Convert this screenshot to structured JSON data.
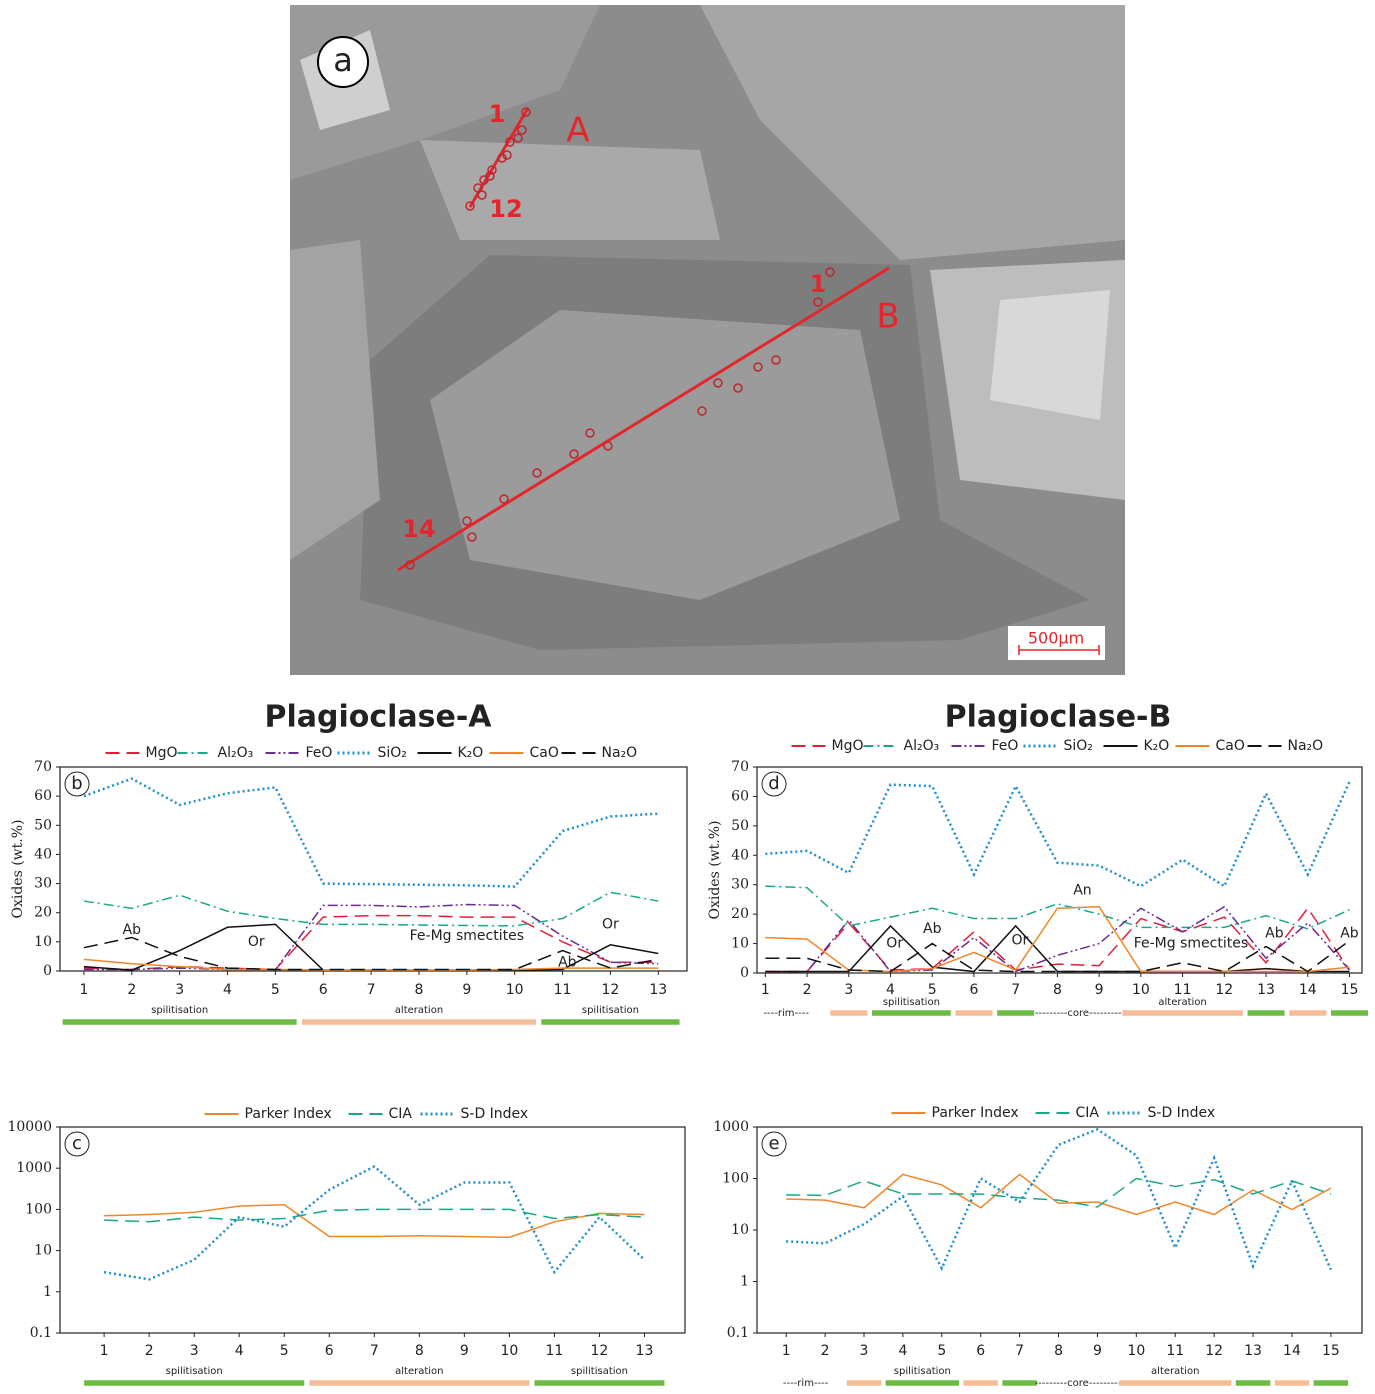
{
  "micrograph": {
    "labels": [
      "a",
      "1",
      "A",
      "12",
      "1",
      "B",
      "14",
      "500μm"
    ]
  },
  "chart_data": [
    {
      "type": "line",
      "title": "Plagioclase-A",
      "panel_label": "b",
      "y_label": "Oxides (wt.%)",
      "x": [
        1,
        2,
        3,
        4,
        5,
        6,
        7,
        8,
        9,
        10,
        11,
        12,
        13
      ],
      "xlim": [
        0.5,
        13.6
      ],
      "xticks": [
        1,
        2,
        3,
        4,
        5,
        6,
        7,
        8,
        9,
        10,
        11,
        12,
        13
      ],
      "ylim": [
        0,
        70
      ],
      "yticks": [
        0,
        10,
        20,
        30,
        40,
        50,
        60,
        70
      ],
      "log_y": false,
      "series": [
        {
          "name": "MgO",
          "color": "#e31e3a",
          "dash": "dashed",
          "values": [
            1,
            0.5,
            1.5,
            1,
            0.5,
            18.5,
            19,
            19,
            18.5,
            18.5,
            10,
            3,
            3
          ]
        },
        {
          "name": "Al₂O₃",
          "color": "#1aa88a",
          "dash": "dashdot",
          "values": [
            24,
            21.5,
            26,
            20.5,
            18,
            16,
            16,
            15.8,
            15.6,
            15.5,
            18,
            27,
            24
          ]
        },
        {
          "name": "FeO",
          "color": "#6a2c91",
          "dash": "dashdotdot",
          "values": [
            0.5,
            0.5,
            1,
            0.5,
            0.5,
            22.5,
            22.5,
            22,
            22.8,
            22.5,
            12,
            3,
            2.5
          ]
        },
        {
          "name": "SiO₂",
          "color": "#1f8fce",
          "dash": "dotted",
          "values": [
            60,
            66,
            57,
            61,
            63,
            30,
            29.8,
            29.6,
            29.4,
            29,
            48,
            53,
            54
          ]
        },
        {
          "name": "K₂O",
          "color": "#111111",
          "dash": "solid",
          "values": [
            1.5,
            0.3,
            7,
            15,
            16,
            0.3,
            0.3,
            0.3,
            0.3,
            0.3,
            0.5,
            9,
            6
          ]
        },
        {
          "name": "CaO",
          "color": "#f0862a",
          "dash": "solid",
          "values": [
            4,
            2.5,
            1.5,
            0.5,
            0.5,
            0.3,
            0.3,
            0.3,
            0.3,
            0.5,
            1,
            1,
            1
          ]
        },
        {
          "name": "Na₂O",
          "color": "#111111",
          "dash": "dashed",
          "values": [
            8,
            11.5,
            5,
            1,
            0.5,
            0.5,
            0.5,
            0.5,
            0.5,
            0.5,
            7,
            1,
            4
          ]
        }
      ],
      "annotations": [
        "Ab",
        "Or",
        "Fe-Mg smectites",
        "Or",
        "Ab"
      ],
      "segments": [
        {
          "label": "spilitisation",
          "from": 1,
          "to": 5,
          "color": "#6dbb45"
        },
        {
          "label": "alteration",
          "from": 6,
          "to": 10,
          "color": "#f6be98"
        },
        {
          "label": "spilitisation",
          "from": 11,
          "to": 13,
          "color": "#6dbb45"
        }
      ]
    },
    {
      "type": "line",
      "panel_label": "c",
      "x": [
        1,
        2,
        3,
        4,
        5,
        6,
        7,
        8,
        9,
        10,
        11,
        12,
        13
      ],
      "xlim": [
        0.02,
        13.9
      ],
      "xticks": [
        1,
        2,
        3,
        4,
        5,
        6,
        7,
        8,
        9,
        10,
        11,
        12,
        13
      ],
      "ylim": [
        0.1,
        10000
      ],
      "yticks": [
        0.1,
        1,
        10,
        100,
        1000,
        10000
      ],
      "log_y": true,
      "series": [
        {
          "name": "Parker Index",
          "color": "#f0862a",
          "dash": "solid",
          "values": [
            70,
            75,
            85,
            120,
            130,
            22,
            22,
            23,
            22,
            21,
            50,
            80,
            75
          ]
        },
        {
          "name": "CIA",
          "color": "#1aa88a",
          "dash": "dashed",
          "values": [
            55,
            50,
            65,
            55,
            60,
            95,
            100,
            100,
            100,
            100,
            60,
            75,
            65
          ]
        },
        {
          "name": "S-D Index",
          "color": "#1f8fce",
          "dash": "dotted",
          "values": [
            3,
            2,
            6,
            65,
            38,
            300,
            1100,
            130,
            450,
            450,
            3,
            65,
            6
          ]
        }
      ],
      "segments": [
        {
          "label": "spilitisation",
          "from": 1,
          "to": 5,
          "color": "#6dbb45"
        },
        {
          "label": "alteration",
          "from": 6,
          "to": 10,
          "color": "#f6be98"
        },
        {
          "label": "spilitisation",
          "from": 11,
          "to": 13,
          "color": "#6dbb45"
        }
      ]
    },
    {
      "type": "line",
      "title": "Plagioclase-B",
      "panel_label": "d",
      "y_label": "Oxides (wt.%)",
      "x": [
        1,
        2,
        3,
        4,
        5,
        6,
        7,
        8,
        9,
        10,
        11,
        12,
        13,
        14,
        15
      ],
      "xlim": [
        0.8,
        15.3
      ],
      "xticks": [
        1,
        2,
        3,
        4,
        5,
        6,
        7,
        8,
        9,
        10,
        11,
        12,
        13,
        14,
        15
      ],
      "ylim": [
        0,
        70
      ],
      "yticks": [
        0,
        10,
        20,
        30,
        40,
        50,
        60,
        70
      ],
      "log_y": false,
      "series": [
        {
          "name": "MgO",
          "color": "#e31e3a",
          "dash": "dashed",
          "values": [
            0.3,
            0.5,
            17,
            1,
            1.5,
            14,
            1,
            3,
            2.5,
            18.5,
            14,
            19,
            3.5,
            22,
            1
          ]
        },
        {
          "name": "Al₂O₃",
          "color": "#1aa88a",
          "dash": "dashdot",
          "values": [
            29.5,
            29,
            16,
            19,
            22,
            18.5,
            18.5,
            23.5,
            20,
            15.5,
            15.5,
            15.5,
            19.5,
            15,
            21.5
          ]
        },
        {
          "name": "FeO",
          "color": "#6a2c91",
          "dash": "dashdotdot",
          "values": [
            0.5,
            0.5,
            18,
            0.5,
            1,
            12,
            0.5,
            6,
            10,
            22,
            14,
            22.5,
            5,
            17,
            1
          ]
        },
        {
          "name": "SiO₂",
          "color": "#1f8fce",
          "dash": "dotted",
          "values": [
            40.5,
            41.5,
            34,
            64,
            63.5,
            33.5,
            63.5,
            37.5,
            36.5,
            29.5,
            38.5,
            29.5,
            61,
            33.5,
            65
          ]
        },
        {
          "name": "K₂O",
          "color": "#111111",
          "dash": "solid",
          "values": [
            0.5,
            0.5,
            0.5,
            16,
            2,
            0.5,
            16,
            0.5,
            0.5,
            0.5,
            0.5,
            0.5,
            1.5,
            0.5,
            0.5
          ]
        },
        {
          "name": "CaO",
          "color": "#f0862a",
          "dash": "solid",
          "values": [
            12,
            11.5,
            1,
            0.5,
            1.5,
            7,
            1,
            22,
            22.5,
            0.5,
            0.5,
            0.5,
            0.5,
            0.5,
            2
          ]
        },
        {
          "name": "Na₂O",
          "color": "#111111",
          "dash": "dashed",
          "values": [
            5,
            5,
            1,
            0.5,
            10,
            1,
            0.5,
            0.5,
            0.5,
            0.5,
            3.5,
            0.5,
            9,
            0.5,
            11
          ]
        }
      ],
      "annotations": [
        "Or",
        "Ab",
        "Or",
        "An",
        "Fe-Mg smectites",
        "Ab",
        "Ab"
      ],
      "segments": [
        {
          "label": "----rim----",
          "from": 1,
          "to": 2
        },
        {
          "from": 3,
          "to": 3,
          "color": "#f6be98"
        },
        {
          "label": "spilitisation",
          "from": 4,
          "to": 5,
          "color": "#6dbb45"
        },
        {
          "from": 6,
          "to": 6,
          "color": "#f6be98"
        },
        {
          "from": 7,
          "to": 7,
          "color": "#6dbb45"
        },
        {
          "label": "---------core---------",
          "from": 8,
          "to": 9
        },
        {
          "label": "alteration",
          "from": 10,
          "to": 12,
          "color": "#f6be98"
        },
        {
          "from": 13,
          "to": 13,
          "color": "#6dbb45"
        },
        {
          "from": 14,
          "to": 14,
          "color": "#f6be98"
        },
        {
          "from": 15,
          "to": 15,
          "color": "#6dbb45"
        }
      ]
    },
    {
      "type": "line",
      "panel_label": "e",
      "x": [
        1,
        2,
        3,
        4,
        5,
        6,
        7,
        8,
        9,
        10,
        11,
        12,
        13,
        14,
        15
      ],
      "xlim": [
        0.25,
        15.8
      ],
      "xticks": [
        1,
        2,
        3,
        4,
        5,
        6,
        7,
        8,
        9,
        10,
        11,
        12,
        13,
        14,
        15
      ],
      "ylim": [
        0.1,
        1000
      ],
      "yticks": [
        0.1,
        1,
        10,
        100,
        1000
      ],
      "log_y": true,
      "series": [
        {
          "name": "Parker Index",
          "color": "#f0862a",
          "dash": "solid",
          "values": [
            40,
            38,
            27,
            120,
            75,
            27,
            120,
            33,
            35,
            20,
            35,
            20,
            60,
            25,
            65
          ]
        },
        {
          "name": "CIA",
          "color": "#1aa88a",
          "dash": "dashed",
          "values": [
            48,
            47,
            90,
            50,
            50,
            50,
            42,
            38,
            28,
            100,
            70,
            95,
            50,
            90,
            50
          ]
        },
        {
          "name": "S-D Index",
          "color": "#1f8fce",
          "dash": "dotted",
          "values": [
            6,
            5.5,
            13,
            45,
            1.8,
            100,
            35,
            450,
            900,
            280,
            4.5,
            250,
            2,
            90,
            1.7
          ]
        }
      ],
      "segments": [
        {
          "label": "----rim----",
          "from": 1,
          "to": 2
        },
        {
          "from": 3,
          "to": 3,
          "color": "#f6be98"
        },
        {
          "label": "spilitisation",
          "from": 4,
          "to": 5,
          "color": "#6dbb45"
        },
        {
          "from": 6,
          "to": 6,
          "color": "#f6be98"
        },
        {
          "from": 7,
          "to": 7,
          "color": "#6dbb45"
        },
        {
          "label": "---------core---------",
          "from": 8,
          "to": 9
        },
        {
          "label": "alteration",
          "from": 10,
          "to": 12,
          "color": "#f6be98"
        },
        {
          "from": 13,
          "to": 13,
          "color": "#6dbb45"
        },
        {
          "from": 14,
          "to": 14,
          "color": "#f6be98"
        },
        {
          "from": 15,
          "to": 15,
          "color": "#6dbb45"
        }
      ]
    }
  ]
}
